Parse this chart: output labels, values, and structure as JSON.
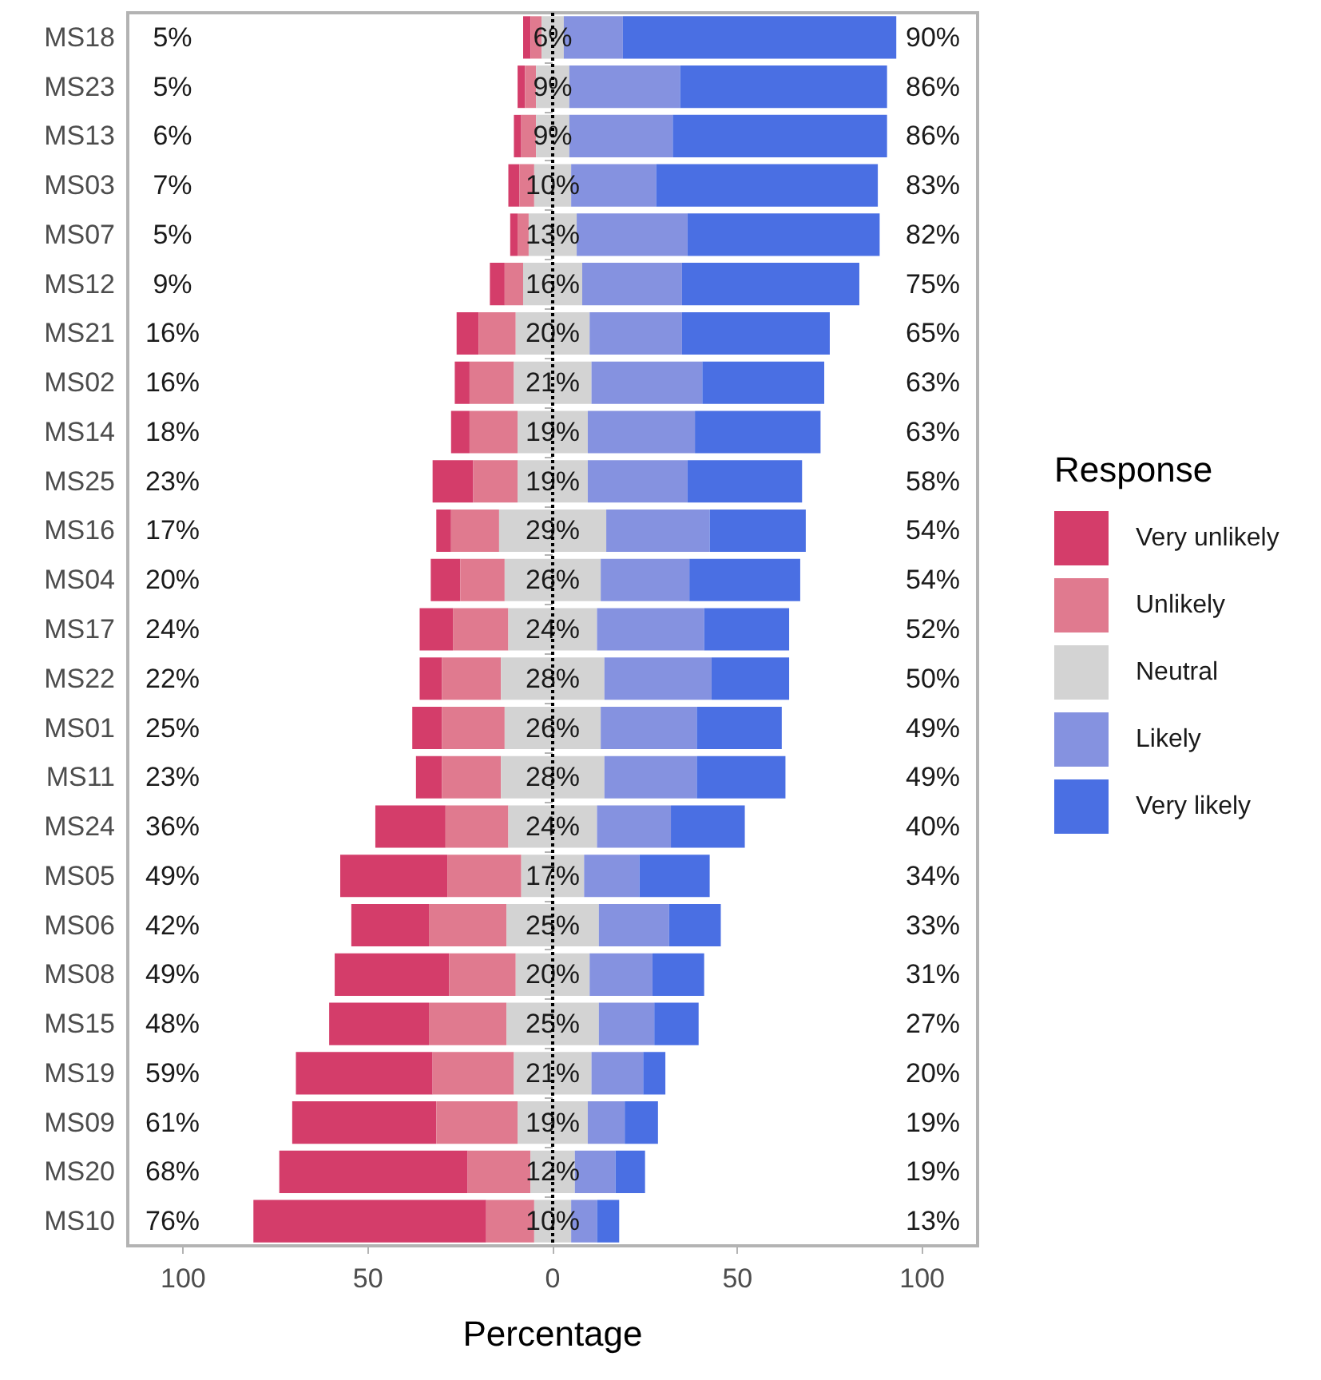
{
  "chart_data": {
    "type": "bar",
    "orientation": "horizontal",
    "xlabel": "Percentage",
    "legend_title": "Response",
    "legend": "right",
    "grid": false,
    "categories": [
      "MS18",
      "MS23",
      "MS13",
      "MS03",
      "MS07",
      "MS12",
      "MS21",
      "MS02",
      "MS14",
      "MS25",
      "MS16",
      "MS04",
      "MS17",
      "MS22",
      "MS01",
      "MS11",
      "MS24",
      "MS05",
      "MS06",
      "MS08",
      "MS15",
      "MS19",
      "MS09",
      "MS20",
      "MS10"
    ],
    "xlim": [
      -115,
      115
    ],
    "xticks": [
      {
        "value": -100,
        "label": "100"
      },
      {
        "value": -50,
        "label": "50"
      },
      0,
      50,
      100
    ],
    "series": [
      {
        "name": "Very unlikely",
        "color": "#d43d6a",
        "values": [
          2,
          2,
          2,
          3,
          2,
          4,
          6,
          4,
          5,
          11,
          4,
          8,
          9,
          6,
          8,
          7,
          19,
          29,
          21,
          31,
          27,
          37,
          39,
          51,
          63
        ],
        "base": [
          -8,
          -9.5,
          -10.5,
          -12,
          -11.5,
          -17,
          -26,
          -26.5,
          -27.5,
          -32.5,
          -31.5,
          -33,
          -36,
          -36,
          -38,
          -37,
          -48,
          -57.5,
          -54.5,
          -59,
          -60.5,
          -69.5,
          -70.5,
          -74,
          -81
        ]
      },
      {
        "name": "Unlikely",
        "color": "#e07a8f",
        "values": [
          3,
          3,
          4,
          4,
          3,
          5,
          10,
          12,
          13,
          12,
          13,
          12,
          15,
          16,
          17,
          16,
          17,
          20,
          21,
          18,
          21,
          22,
          22,
          17,
          13
        ],
        "base": [
          -6,
          -7.5,
          -8.5,
          -9,
          -9.5,
          -13,
          -20,
          -22.5,
          -22.5,
          -21.5,
          -27.5,
          -25,
          -27,
          -30,
          -30,
          -30,
          -29,
          -28.5,
          -33.5,
          -28,
          -33.5,
          -32.5,
          -31.5,
          -23,
          -18
        ]
      },
      {
        "name": "Neutral",
        "color": "#d3d3d3",
        "values": [
          6,
          9,
          9,
          10,
          13,
          16,
          20,
          21,
          19,
          19,
          29,
          26,
          24,
          28,
          26,
          28,
          24,
          17,
          25,
          20,
          25,
          21,
          19,
          12,
          10
        ],
        "base": [
          -3,
          -4.5,
          -4.5,
          -5,
          -6.5,
          -8,
          -10,
          -10.5,
          -9.5,
          -9.5,
          -14.5,
          -13,
          -12,
          -14,
          -13,
          -14,
          -12,
          -8.5,
          -12.5,
          -10,
          -12.5,
          -10.5,
          -9.5,
          -6,
          -5
        ],
        "value_labels": [
          "6%",
          "9%",
          "9%",
          "10%",
          "13%",
          "16%",
          "20%",
          "21%",
          "19%",
          "19%",
          "29%",
          "26%",
          "24%",
          "28%",
          "26%",
          "28%",
          "24%",
          "17%",
          "25%",
          "20%",
          "25%",
          "21%",
          "19%",
          "12%",
          "10%"
        ]
      },
      {
        "name": "Likely",
        "color": "#8592e0",
        "values": [
          16,
          30,
          28,
          23,
          30,
          27,
          25,
          30,
          29,
          27,
          28,
          24,
          29,
          29,
          26,
          25,
          20,
          15,
          19,
          17,
          15,
          14,
          10,
          11,
          7
        ],
        "base": [
          3,
          4.5,
          4.5,
          5,
          6.5,
          8,
          10,
          10.5,
          9.5,
          9.5,
          14.5,
          13,
          12,
          14,
          13,
          14,
          12,
          8.5,
          12.5,
          10,
          12.5,
          10.5,
          9.5,
          6,
          5
        ]
      },
      {
        "name": "Very likely",
        "color": "#4a6fe3",
        "values": [
          74,
          56,
          58,
          60,
          52,
          48,
          40,
          33,
          34,
          31,
          26,
          30,
          23,
          21,
          23,
          24,
          20,
          19,
          14,
          14,
          12,
          6,
          9,
          8,
          6
        ],
        "base": [
          19,
          34.5,
          32.5,
          28,
          36.5,
          35,
          35,
          40.5,
          38.5,
          36.5,
          42.5,
          37,
          41,
          43,
          39,
          39,
          32,
          23.5,
          31.5,
          27,
          27.5,
          24.5,
          19.5,
          17,
          12
        ]
      }
    ],
    "ref_lines": [
      {
        "axis": "x",
        "value": 0,
        "color": "#000000",
        "line_style": "dotted"
      }
    ],
    "annotations": [
      "5%",
      "5%",
      "6%",
      "7%",
      "5%",
      "9%",
      "16%",
      "16%",
      "18%",
      "23%",
      "17%",
      "20%",
      "24%",
      "22%",
      "25%",
      "23%",
      "36%",
      "49%",
      "42%",
      "49%",
      "48%",
      "59%",
      "61%",
      "68%",
      "76%",
      "90%",
      "86%",
      "86%",
      "83%",
      "82%",
      "75%",
      "65%",
      "63%",
      "63%",
      "58%",
      "54%",
      "54%",
      "52%",
      "50%",
      "49%",
      "49%",
      "40%",
      "34%",
      "33%",
      "31%",
      "27%",
      "20%",
      "19%",
      "19%",
      "13%"
    ]
  }
}
